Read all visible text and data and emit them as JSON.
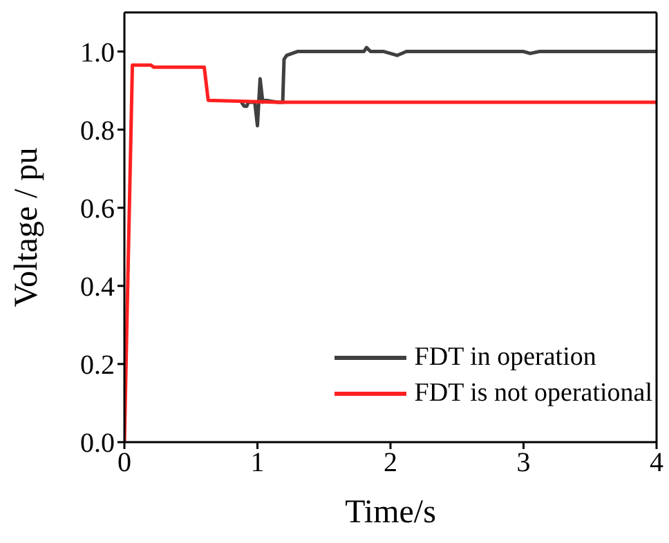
{
  "chart_data": {
    "type": "line",
    "xlabel": "Time/s",
    "ylabel": "Voltage / pu",
    "xlim": [
      0,
      4
    ],
    "xticks": [
      0,
      1,
      2,
      3,
      4
    ],
    "ylim": [
      0,
      1.1
    ],
    "yticks": [
      {
        "value": 0,
        "label": "0.0"
      },
      {
        "value": 0.2,
        "label": "0.2"
      },
      {
        "value": 0.4,
        "label": "0.4"
      },
      {
        "value": 0.6,
        "label": "0.6"
      },
      {
        "value": 0.8,
        "label": "0.8"
      },
      {
        "value": 1,
        "label": "1.0"
      }
    ],
    "legend": "bottom right",
    "marker": "none",
    "line_style": "solid",
    "series": [
      {
        "name": "FDT in operation",
        "color": "#404040",
        "x": [
          0.88,
          0.9,
          0.92,
          0.93,
          0.98,
          1.0,
          1.02,
          1.04,
          1.06,
          1.15,
          1.19,
          1.2,
          1.22,
          1.3,
          1.4,
          1.8,
          1.82,
          1.85,
          1.95,
          2.05,
          2.12,
          2.5,
          3.0,
          3.05,
          3.12,
          3.5,
          4.0
        ],
        "values": [
          0.87,
          0.86,
          0.86,
          0.87,
          0.87,
          0.81,
          0.93,
          0.87,
          0.875,
          0.87,
          0.87,
          0.98,
          0.99,
          1.0,
          1.0,
          1.0,
          1.01,
          1.0,
          1.0,
          0.99,
          1.0,
          1.0,
          1.0,
          0.995,
          1.0,
          1.0,
          1.0
        ]
      },
      {
        "name": "FDT is not operational",
        "color": "#ff2020",
        "x": [
          0,
          0.06,
          0.2,
          0.22,
          0.6,
          0.63,
          1.15,
          4.0
        ],
        "values": [
          0,
          0.965,
          0.965,
          0.96,
          0.96,
          0.875,
          0.87,
          0.87
        ]
      }
    ]
  }
}
